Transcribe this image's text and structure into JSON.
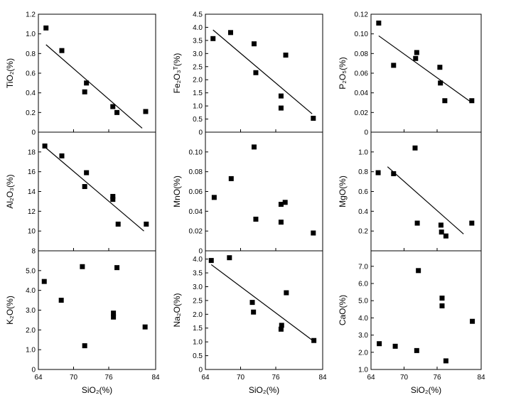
{
  "figure": {
    "x_axis_label": "SiO₂(%)",
    "x_ticks": [
      "64",
      "70",
      "76",
      "84"
    ],
    "x_tick_values": [
      64,
      70,
      76,
      84
    ],
    "xlim": [
      64,
      84
    ],
    "colors": {
      "ink": "#000000",
      "background": "#ffffff"
    }
  },
  "chart_data": [
    {
      "id": "tio2",
      "type": "scatter",
      "ylabel": "TiO₂(%)",
      "xlabel": "SiO₂(%)",
      "xlim": [
        64,
        84
      ],
      "ylim": [
        0,
        1.2
      ],
      "yticks": [
        {
          "v": 0,
          "t": "0"
        },
        {
          "v": 0.2,
          "t": "0.2"
        },
        {
          "v": 0.4,
          "t": "0.4"
        },
        {
          "v": 0.6,
          "t": "0.6"
        },
        {
          "v": 0.8,
          "t": "0.8"
        },
        {
          "v": 1.0,
          "t": "1.0"
        },
        {
          "v": 1.2,
          "t": "1.2"
        }
      ],
      "points": [
        [
          65.3,
          1.06
        ],
        [
          68.0,
          0.83
        ],
        [
          71.9,
          0.41
        ],
        [
          72.2,
          0.5
        ],
        [
          76.7,
          0.26
        ],
        [
          77.4,
          0.2
        ],
        [
          82.3,
          0.21
        ]
      ],
      "trend": [
        [
          65.3,
          0.89
        ],
        [
          81.7,
          0.04
        ]
      ]
    },
    {
      "id": "fe2o3",
      "type": "scatter",
      "ylabel": "Fe₂O₃ᵀ(%)",
      "xlabel": "SiO₂(%)",
      "xlim": [
        64,
        84
      ],
      "ylim": [
        0,
        4.5
      ],
      "yticks": [
        {
          "v": 0,
          "t": "0"
        },
        {
          "v": 0.5,
          "t": "0.5"
        },
        {
          "v": 1.0,
          "t": "1.0"
        },
        {
          "v": 1.5,
          "t": "1.5"
        },
        {
          "v": 2.0,
          "t": "2.0"
        },
        {
          "v": 2.5,
          "t": "2.5"
        },
        {
          "v": 3.0,
          "t": "3.0"
        },
        {
          "v": 3.5,
          "t": "3.5"
        },
        {
          "v": 4.0,
          "t": "4.0"
        },
        {
          "v": 4.5,
          "t": "4.5"
        }
      ],
      "points": [
        [
          65.3,
          3.57
        ],
        [
          68.3,
          3.8
        ],
        [
          72.3,
          3.37
        ],
        [
          72.6,
          2.27
        ],
        [
          76.9,
          1.38
        ],
        [
          76.9,
          0.92
        ],
        [
          77.7,
          2.94
        ],
        [
          82.4,
          0.53
        ]
      ],
      "trend": [
        [
          65.3,
          3.9
        ],
        [
          82.2,
          0.7
        ]
      ]
    },
    {
      "id": "p2o5",
      "type": "scatter",
      "ylabel": "P₂O₅(%)",
      "xlabel": "SiO₂(%)",
      "xlim": [
        64,
        84
      ],
      "ylim": [
        0,
        0.12
      ],
      "yticks": [
        {
          "v": 0,
          "t": "0"
        },
        {
          "v": 0.02,
          "t": "0.02"
        },
        {
          "v": 0.04,
          "t": "0.04"
        },
        {
          "v": 0.06,
          "t": "0.06"
        },
        {
          "v": 0.08,
          "t": "0.08"
        },
        {
          "v": 0.1,
          "t": "0.10"
        },
        {
          "v": 0.12,
          "t": "0.12"
        }
      ],
      "points": [
        [
          65.4,
          0.111
        ],
        [
          68.1,
          0.068
        ],
        [
          72.1,
          0.075
        ],
        [
          72.3,
          0.081
        ],
        [
          76.5,
          0.066
        ],
        [
          76.6,
          0.05
        ],
        [
          77.4,
          0.032
        ],
        [
          82.3,
          0.032
        ]
      ],
      "trend": [
        [
          65.4,
          0.098
        ],
        [
          82.3,
          0.03
        ]
      ]
    },
    {
      "id": "al2o3",
      "type": "scatter",
      "ylabel": "Al₂O₃(%)",
      "xlabel": "SiO₂(%)",
      "xlim": [
        64,
        84
      ],
      "ylim": [
        8,
        20
      ],
      "yticks": [
        {
          "v": 8,
          "t": "8"
        },
        {
          "v": 10,
          "t": "10"
        },
        {
          "v": 12,
          "t": "12"
        },
        {
          "v": 14,
          "t": "14"
        },
        {
          "v": 16,
          "t": "16"
        },
        {
          "v": 18,
          "t": "18"
        }
      ],
      "points": [
        [
          65.1,
          18.6
        ],
        [
          68.0,
          17.6
        ],
        [
          71.9,
          14.5
        ],
        [
          72.2,
          15.9
        ],
        [
          76.7,
          13.2
        ],
        [
          76.7,
          13.5
        ],
        [
          77.6,
          10.7
        ],
        [
          82.4,
          10.7
        ]
      ],
      "trend": [
        [
          65.1,
          18.5
        ],
        [
          82.0,
          10.0
        ]
      ]
    },
    {
      "id": "mno",
      "type": "scatter",
      "ylabel": "MnO(%)",
      "xlabel": "SiO₂(%)",
      "xlim": [
        64,
        84
      ],
      "ylim": [
        0,
        0.12
      ],
      "yticks": [
        {
          "v": 0,
          "t": "0"
        },
        {
          "v": 0.02,
          "t": "0.02"
        },
        {
          "v": 0.04,
          "t": "0.04"
        },
        {
          "v": 0.06,
          "t": "0.06"
        },
        {
          "v": 0.08,
          "t": "0.08"
        },
        {
          "v": 0.1,
          "t": "0.10"
        }
      ],
      "points": [
        [
          65.5,
          0.054
        ],
        [
          68.4,
          0.073
        ],
        [
          72.3,
          0.105
        ],
        [
          72.6,
          0.032
        ],
        [
          76.9,
          0.029
        ],
        [
          76.9,
          0.047
        ],
        [
          77.6,
          0.049
        ],
        [
          82.4,
          0.018
        ]
      ],
      "trend": null
    },
    {
      "id": "mgo",
      "type": "scatter",
      "ylabel": "MgO(%)",
      "xlabel": "SiO₂(%)",
      "xlim": [
        64,
        84
      ],
      "ylim": [
        0,
        1.2
      ],
      "yticks": [
        {
          "v": 0.2,
          "t": "0.2"
        },
        {
          "v": 0.4,
          "t": "0.4"
        },
        {
          "v": 0.6,
          "t": "0.6"
        },
        {
          "v": 0.8,
          "t": "0.8"
        },
        {
          "v": 1.0,
          "t": "1.0"
        }
      ],
      "points": [
        [
          65.3,
          0.79
        ],
        [
          68.1,
          0.78
        ],
        [
          72.0,
          1.04
        ],
        [
          72.4,
          0.28
        ],
        [
          76.7,
          0.26
        ],
        [
          76.8,
          0.19
        ],
        [
          77.6,
          0.15
        ],
        [
          82.3,
          0.28
        ]
      ],
      "trend": [
        [
          67.0,
          0.85
        ],
        [
          80.8,
          0.17
        ]
      ]
    },
    {
      "id": "k2o",
      "type": "scatter",
      "ylabel": "K₂O(%)",
      "xlabel": "SiO₂(%)",
      "xlim": [
        64,
        84
      ],
      "ylim": [
        0,
        6.0
      ],
      "yticks": [
        {
          "v": 0,
          "t": "0"
        },
        {
          "v": 1.0,
          "t": "1.0"
        },
        {
          "v": 2.0,
          "t": "2.0"
        },
        {
          "v": 3.0,
          "t": "3.0"
        },
        {
          "v": 4.0,
          "t": "4.0"
        },
        {
          "v": 5.0,
          "t": "5.0"
        }
      ],
      "points": [
        [
          65.0,
          4.45
        ],
        [
          67.9,
          3.5
        ],
        [
          71.5,
          5.2
        ],
        [
          71.9,
          1.2
        ],
        [
          76.8,
          2.65
        ],
        [
          76.8,
          2.85
        ],
        [
          77.4,
          5.15
        ],
        [
          82.2,
          2.15
        ]
      ],
      "trend": null
    },
    {
      "id": "na2o",
      "type": "scatter",
      "ylabel": "Na₂O(%)",
      "xlabel": "SiO₂(%)",
      "xlim": [
        64,
        84
      ],
      "ylim": [
        0,
        4.3
      ],
      "yticks": [
        {
          "v": 0,
          "t": "0"
        },
        {
          "v": 0.5,
          "t": "0.5"
        },
        {
          "v": 1.0,
          "t": "1.0"
        },
        {
          "v": 1.5,
          "t": "1.5"
        },
        {
          "v": 2.0,
          "t": "2.0"
        },
        {
          "v": 2.5,
          "t": "2.5"
        },
        {
          "v": 3.0,
          "t": "3.0"
        },
        {
          "v": 3.5,
          "t": "3.5"
        },
        {
          "v": 4.0,
          "t": "4.0"
        }
      ],
      "points": [
        [
          65.0,
          3.95
        ],
        [
          68.1,
          4.05
        ],
        [
          72.0,
          2.43
        ],
        [
          72.2,
          2.08
        ],
        [
          76.9,
          1.46
        ],
        [
          77.0,
          1.6
        ],
        [
          77.8,
          2.78
        ],
        [
          82.5,
          1.05
        ]
      ],
      "trend": [
        [
          65.0,
          3.8
        ],
        [
          82.3,
          1.05
        ]
      ]
    },
    {
      "id": "cao",
      "type": "scatter",
      "ylabel": "CaO(%)",
      "xlabel": "SiO₂(%)",
      "xlim": [
        64,
        84
      ],
      "ylim": [
        1.0,
        7.9
      ],
      "yticks": [
        {
          "v": 1.0,
          "t": "1.0"
        },
        {
          "v": 2.0,
          "t": "2.0"
        },
        {
          "v": 3.0,
          "t": "3.0"
        },
        {
          "v": 4.0,
          "t": "4.0"
        },
        {
          "v": 5.0,
          "t": "5.0"
        },
        {
          "v": 6.0,
          "t": "6.0"
        },
        {
          "v": 7.0,
          "t": "7.0"
        }
      ],
      "points": [
        [
          65.5,
          2.5
        ],
        [
          68.4,
          2.35
        ],
        [
          72.3,
          2.1
        ],
        [
          72.6,
          6.75
        ],
        [
          76.9,
          5.15
        ],
        [
          76.9,
          4.7
        ],
        [
          77.6,
          1.5
        ],
        [
          82.4,
          3.8
        ]
      ],
      "trend": null
    }
  ]
}
